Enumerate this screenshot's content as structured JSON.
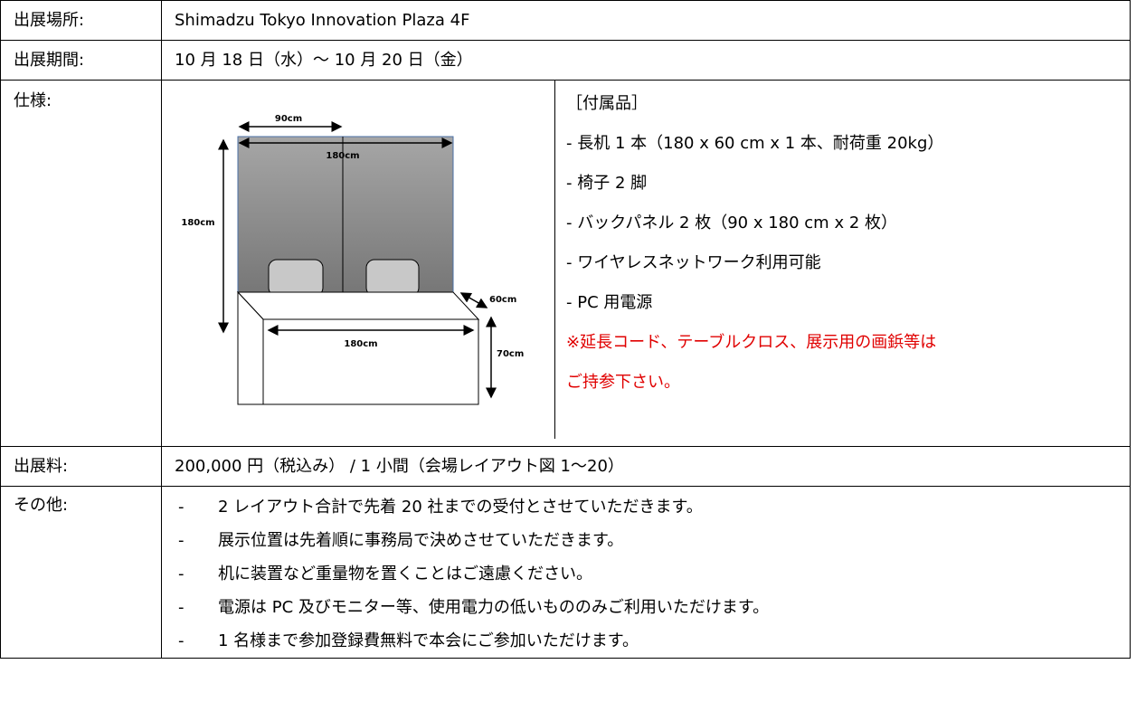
{
  "table": {
    "rows": [
      {
        "label": "出展場所:",
        "value": "Shimadzu Tokyo Innovation Plaza 4F"
      },
      {
        "label": "出展期間:",
        "value": "10 月 18 日（水）～ 10 月 20 日（金）"
      },
      {
        "label": "仕様:",
        "diagram": {
          "labels": [
            "90cm",
            "180cm",
            "180cm",
            "60cm",
            "180cm",
            "70cm"
          ]
        },
        "items_heading": "［付属品］",
        "items": [
          "- 長机 1 本（180 x 60 cm x 1 本、耐荷重 20kg）",
          "- 椅子 2 脚",
          "- バックパネル 2 枚（90 x 180 cm x 2 枚）",
          "- ワイヤレスネットワーク利用可能",
          "- PC 用電源"
        ],
        "notes": [
          "※延長コード、テーブルクロス、展示用の画鋲等は",
          "ご持参下さい。"
        ]
      },
      {
        "label": "出展料:",
        "value": "200,000 円（税込み） / 1 小間（会場レイアウト図 1～20）"
      },
      {
        "label": "その他:",
        "bullet": "-",
        "items": [
          "2 レイアウト合計で先着 20 社までの受付とさせていただきます。",
          "展示位置は先着順に事務局で決めさせていただきます。",
          "机に装置など重量物を置くことはご遠慮ください。",
          "電源は PC 及びモニター等、使用電力の低いもののみご利用いただけます。",
          "1 名様まで参加登録費無料で本会にご参加いただけます。"
        ]
      }
    ]
  }
}
